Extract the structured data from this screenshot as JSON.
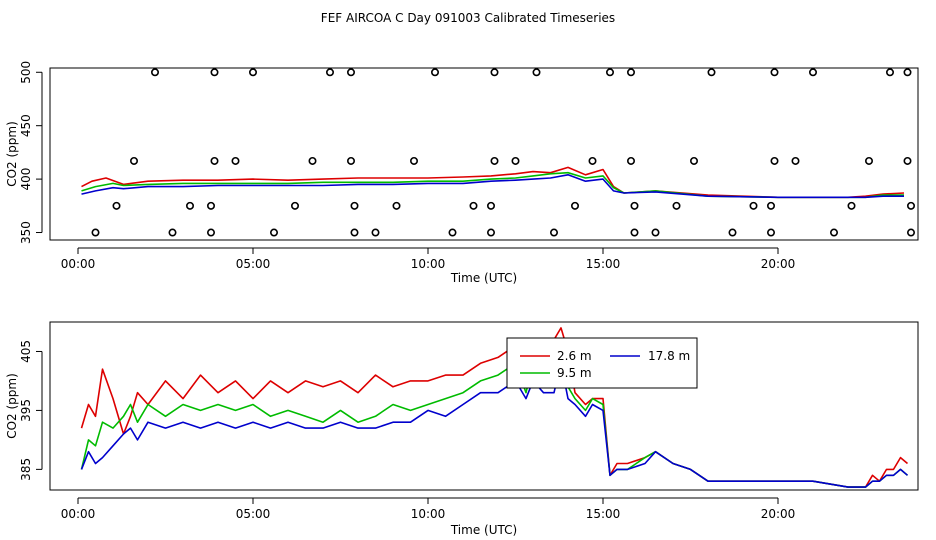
{
  "title": "FEF AIRCOA C  Day 091003  Calibrated Timeseries",
  "colors": {
    "s26": "#dd0000",
    "s95": "#00bb00",
    "s178": "#0000cc",
    "flag": "#000000"
  },
  "chart_data": [
    {
      "type": "line+scatter",
      "xlabel": "Time (UTC)",
      "ylabel": "CO2 (ppm)",
      "xlim": [
        -0.8,
        24.0
      ],
      "ylim": [
        343,
        504
      ],
      "xticks": [
        0,
        5,
        10,
        15,
        20
      ],
      "xtick_labels": [
        "00:00",
        "05:00",
        "10:00",
        "15:00",
        "20:00"
      ],
      "yticks": [
        350,
        400,
        450,
        500
      ],
      "ytick_labels": [
        "350",
        "400",
        "450",
        "500"
      ],
      "series": [
        {
          "name": "2.6 m",
          "color_key": "s26",
          "x": [
            0.1,
            0.4,
            0.8,
            1.3,
            2.0,
            3.0,
            4.0,
            5.0,
            6.0,
            7.0,
            8.0,
            9.0,
            10.0,
            11.0,
            11.8,
            12.5,
            13.0,
            13.5,
            14.0,
            14.5,
            15.0,
            15.3,
            15.6,
            16.5,
            18.0,
            20.0,
            22.0,
            22.5,
            23.0,
            23.6
          ],
          "y": [
            393,
            398,
            401,
            395,
            398,
            399,
            399,
            400,
            399,
            400,
            401,
            401,
            401,
            402,
            403,
            405,
            407,
            406,
            411,
            404,
            409,
            393,
            387,
            389,
            385,
            383,
            383,
            384,
            386,
            387
          ]
        },
        {
          "name": "9.5 m",
          "color_key": "s95",
          "x": [
            0.1,
            0.5,
            1.0,
            1.3,
            2.0,
            3.0,
            4.0,
            5.0,
            6.0,
            7.0,
            8.0,
            9.0,
            10.0,
            11.0,
            11.8,
            12.5,
            13.0,
            13.5,
            14.0,
            14.5,
            15.0,
            15.3,
            15.6,
            16.5,
            18.0,
            20.0,
            22.0,
            22.5,
            23.0,
            23.6
          ],
          "y": [
            389,
            393,
            396,
            394,
            395,
            396,
            396,
            396,
            396,
            397,
            397,
            397,
            398,
            398,
            400,
            401,
            403,
            405,
            406,
            401,
            403,
            392,
            387,
            389,
            384,
            383,
            383,
            383,
            385,
            385
          ]
        },
        {
          "name": "17.8 m",
          "color_key": "s178",
          "x": [
            0.1,
            0.5,
            1.0,
            1.3,
            2.0,
            3.0,
            4.0,
            5.0,
            6.0,
            7.0,
            8.0,
            9.0,
            10.0,
            11.0,
            11.8,
            12.5,
            13.0,
            13.5,
            14.0,
            14.5,
            15.0,
            15.3,
            15.6,
            16.5,
            18.0,
            20.0,
            22.0,
            22.5,
            23.0,
            23.6
          ],
          "y": [
            386,
            389,
            392,
            391,
            393,
            393,
            394,
            394,
            394,
            394,
            395,
            395,
            396,
            396,
            398,
            399,
            400,
            401,
            404,
            398,
            400,
            389,
            387,
            388,
            384,
            383,
            383,
            383,
            384,
            384
          ]
        }
      ],
      "flags": [
        {
          "x": 0.5,
          "y": 350
        },
        {
          "x": 1.1,
          "y": 375
        },
        {
          "x": 1.6,
          "y": 417
        },
        {
          "x": 2.2,
          "y": 500
        },
        {
          "x": 2.7,
          "y": 350
        },
        {
          "x": 3.2,
          "y": 375
        },
        {
          "x": 3.8,
          "y": 350
        },
        {
          "x": 3.8,
          "y": 375
        },
        {
          "x": 3.9,
          "y": 417
        },
        {
          "x": 3.9,
          "y": 500
        },
        {
          "x": 4.5,
          "y": 417
        },
        {
          "x": 5.0,
          "y": 500
        },
        {
          "x": 5.6,
          "y": 350
        },
        {
          "x": 6.2,
          "y": 375
        },
        {
          "x": 6.7,
          "y": 417
        },
        {
          "x": 7.2,
          "y": 500
        },
        {
          "x": 7.8,
          "y": 500
        },
        {
          "x": 7.8,
          "y": 417
        },
        {
          "x": 7.9,
          "y": 375
        },
        {
          "x": 7.9,
          "y": 350
        },
        {
          "x": 8.5,
          "y": 350
        },
        {
          "x": 9.1,
          "y": 375
        },
        {
          "x": 9.6,
          "y": 417
        },
        {
          "x": 10.2,
          "y": 500
        },
        {
          "x": 10.7,
          "y": 350
        },
        {
          "x": 11.3,
          "y": 375
        },
        {
          "x": 11.8,
          "y": 350
        },
        {
          "x": 11.8,
          "y": 375
        },
        {
          "x": 11.9,
          "y": 417
        },
        {
          "x": 11.9,
          "y": 500
        },
        {
          "x": 12.5,
          "y": 417
        },
        {
          "x": 13.1,
          "y": 500
        },
        {
          "x": 13.6,
          "y": 350
        },
        {
          "x": 14.2,
          "y": 375
        },
        {
          "x": 14.7,
          "y": 417
        },
        {
          "x": 15.2,
          "y": 500
        },
        {
          "x": 15.8,
          "y": 500
        },
        {
          "x": 15.8,
          "y": 417
        },
        {
          "x": 15.9,
          "y": 375
        },
        {
          "x": 15.9,
          "y": 350
        },
        {
          "x": 16.5,
          "y": 350
        },
        {
          "x": 17.1,
          "y": 375
        },
        {
          "x": 17.6,
          "y": 417
        },
        {
          "x": 18.1,
          "y": 500
        },
        {
          "x": 18.7,
          "y": 350
        },
        {
          "x": 19.3,
          "y": 375
        },
        {
          "x": 19.8,
          "y": 350
        },
        {
          "x": 19.8,
          "y": 375
        },
        {
          "x": 19.9,
          "y": 417
        },
        {
          "x": 19.9,
          "y": 500
        },
        {
          "x": 20.5,
          "y": 417
        },
        {
          "x": 21.0,
          "y": 500
        },
        {
          "x": 21.6,
          "y": 350
        },
        {
          "x": 22.1,
          "y": 375
        },
        {
          "x": 22.6,
          "y": 417
        },
        {
          "x": 23.2,
          "y": 500
        },
        {
          "x": 23.7,
          "y": 500
        },
        {
          "x": 23.7,
          "y": 417
        },
        {
          "x": 23.8,
          "y": 375
        },
        {
          "x": 23.8,
          "y": 350
        }
      ]
    },
    {
      "type": "line",
      "xlabel": "Time (UTC)",
      "ylabel": "CO2 (ppm)",
      "xlim": [
        -0.8,
        24.0
      ],
      "ylim": [
        381.5,
        410
      ],
      "xticks": [
        0,
        5,
        10,
        15,
        20
      ],
      "xtick_labels": [
        "00:00",
        "05:00",
        "10:00",
        "15:00",
        "20:00"
      ],
      "yticks": [
        385,
        395,
        405
      ],
      "ytick_labels": [
        "385",
        "395",
        "405"
      ],
      "legend": {
        "placement": "top-center",
        "entries": [
          "2.6 m",
          "17.8 m",
          "9.5 m"
        ]
      },
      "series": [
        {
          "name": "2.6 m",
          "color_key": "s26",
          "x": [
            0.1,
            0.3,
            0.5,
            0.7,
            1.0,
            1.3,
            1.5,
            1.7,
            2.0,
            2.5,
            3.0,
            3.5,
            4.0,
            4.5,
            5.0,
            5.5,
            6.0,
            6.5,
            7.0,
            7.5,
            8.0,
            8.5,
            9.0,
            9.5,
            10.0,
            10.5,
            11.0,
            11.5,
            12.0,
            12.5,
            12.8,
            13.0,
            13.3,
            13.6,
            13.8,
            14.0,
            14.2,
            14.5,
            14.7,
            15.0,
            15.2,
            15.4,
            15.7,
            16.2,
            16.5,
            17.0,
            17.5,
            18.0,
            19.0,
            20.0,
            21.0,
            22.0,
            22.5,
            22.7,
            22.9,
            23.1,
            23.3,
            23.5,
            23.7
          ],
          "y": [
            392,
            396,
            394,
            402,
            397,
            391,
            394,
            398,
            396,
            400,
            397,
            401,
            398,
            400,
            397,
            400,
            398,
            400,
            399,
            400,
            398,
            401,
            399,
            400,
            400,
            401,
            401,
            403,
            404,
            406,
            402,
            406,
            404,
            407,
            409,
            405,
            398,
            396,
            397,
            397,
            384,
            386,
            386,
            387,
            388,
            386,
            385,
            383,
            383,
            383,
            383,
            382,
            382,
            384,
            383,
            385,
            385,
            387,
            386
          ]
        },
        {
          "name": "9.5 m",
          "color_key": "s95",
          "x": [
            0.1,
            0.3,
            0.5,
            0.7,
            1.0,
            1.3,
            1.5,
            1.7,
            2.0,
            2.5,
            3.0,
            3.5,
            4.0,
            4.5,
            5.0,
            5.5,
            6.0,
            6.5,
            7.0,
            7.5,
            8.0,
            8.5,
            9.0,
            9.5,
            10.0,
            10.5,
            11.0,
            11.5,
            12.0,
            12.5,
            12.8,
            13.0,
            13.3,
            13.6,
            13.8,
            14.0,
            14.2,
            14.5,
            14.7,
            15.0,
            15.2,
            15.4,
            15.7,
            16.2,
            16.5,
            17.0,
            17.5,
            18.0,
            19.0,
            20.0,
            21.0,
            22.0,
            22.5,
            22.7,
            22.9,
            23.1,
            23.3,
            23.5,
            23.7
          ],
          "y": [
            385,
            390,
            389,
            393,
            392,
            394,
            396,
            393,
            396,
            394,
            396,
            395,
            396,
            395,
            396,
            394,
            395,
            394,
            393,
            395,
            393,
            394,
            396,
            395,
            396,
            397,
            398,
            400,
            401,
            403,
            398,
            403,
            401,
            402,
            404,
            399,
            397,
            395,
            397,
            396,
            384,
            385,
            385,
            387,
            388,
            386,
            385,
            383,
            383,
            383,
            383,
            382,
            382,
            383,
            383,
            384,
            384,
            385,
            384
          ]
        },
        {
          "name": "17.8 m",
          "color_key": "s178",
          "x": [
            0.1,
            0.3,
            0.5,
            0.7,
            1.0,
            1.3,
            1.5,
            1.7,
            2.0,
            2.5,
            3.0,
            3.5,
            4.0,
            4.5,
            5.0,
            5.5,
            6.0,
            6.5,
            7.0,
            7.5,
            8.0,
            8.5,
            9.0,
            9.5,
            10.0,
            10.5,
            11.0,
            11.5,
            12.0,
            12.5,
            12.8,
            13.0,
            13.3,
            13.6,
            13.8,
            14.0,
            14.2,
            14.5,
            14.7,
            15.0,
            15.2,
            15.4,
            15.7,
            16.2,
            16.5,
            17.0,
            17.5,
            18.0,
            19.0,
            20.0,
            21.0,
            22.0,
            22.5,
            22.7,
            22.9,
            23.1,
            23.3,
            23.5,
            23.7
          ],
          "y": [
            385,
            388,
            386,
            387,
            389,
            391,
            392,
            390,
            393,
            392,
            393,
            392,
            393,
            392,
            393,
            392,
            393,
            392,
            392,
            393,
            392,
            392,
            393,
            393,
            395,
            394,
            396,
            398,
            398,
            400,
            397,
            400,
            398,
            398,
            403,
            397,
            396,
            394,
            396,
            395,
            384,
            385,
            385,
            386,
            388,
            386,
            385,
            383,
            383,
            383,
            383,
            382,
            382,
            383,
            383,
            384,
            384,
            385,
            384
          ]
        }
      ]
    }
  ]
}
